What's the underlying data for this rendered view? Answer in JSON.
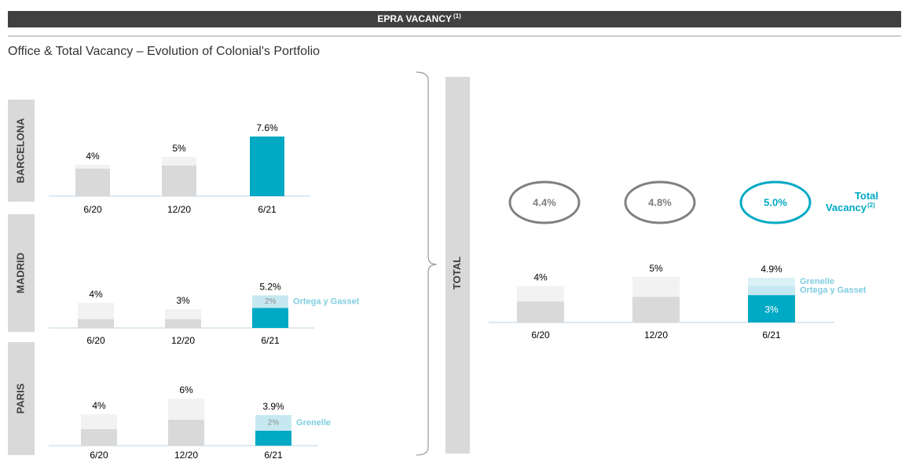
{
  "header": {
    "title": "EPRA VACANCY",
    "note": "(1)"
  },
  "subtitle": "Office & Total Vacancy – Evolution of Colonial's Portfolio",
  "chart_data": [
    {
      "type": "bar",
      "title": "BARCELONA",
      "categories": [
        "6/20",
        "12/20",
        "6/21"
      ],
      "values": [
        4,
        5,
        7.6
      ],
      "value_labels": [
        "4%",
        "5%",
        "7.6%"
      ],
      "base_values": [
        3.5,
        3.9,
        7.6
      ],
      "base_colors": [
        "#d9d9d9",
        "#d9d9d9",
        "#00a9c4"
      ],
      "top_color": "#f2f2f2",
      "ylim": [
        0,
        8
      ],
      "segments": []
    },
    {
      "type": "bar",
      "title": "MADRID",
      "categories": [
        "6/20",
        "12/20",
        "6/21"
      ],
      "values": [
        4,
        3,
        5.2
      ],
      "value_labels": [
        "4%",
        "3%",
        "5.2%"
      ],
      "base_values": [
        1.4,
        1.4,
        3.2
      ],
      "base_colors": [
        "#d9d9d9",
        "#d9d9d9",
        "#00a9c4"
      ],
      "top_color": "#f2f2f2",
      "ylim": [
        0,
        8
      ],
      "segments": [
        {
          "name": "Ortega y Gasset",
          "value": 2,
          "label": "2%",
          "color": "#c6e9f1"
        }
      ]
    },
    {
      "type": "bar",
      "title": "PARIS",
      "categories": [
        "6/20",
        "12/20",
        "6/21"
      ],
      "values": [
        4,
        6,
        3.9
      ],
      "value_labels": [
        "4%",
        "6%",
        "3.9%"
      ],
      "base_values": [
        2.1,
        3.3,
        1.9
      ],
      "base_colors": [
        "#d9d9d9",
        "#d9d9d9",
        "#00a9c4"
      ],
      "top_color": "#f2f2f2",
      "ylim": [
        0,
        8
      ],
      "segments": [
        {
          "name": "Grenelle",
          "value": 2,
          "label": "2%",
          "color": "#c6e9f1"
        }
      ]
    },
    {
      "type": "bar",
      "title": "TOTAL",
      "categories": [
        "6/20",
        "12/20",
        "6/21"
      ],
      "values": [
        4,
        5,
        4.9
      ],
      "value_labels": [
        "4%",
        "5%",
        "4.9%"
      ],
      "base_values": [
        2.3,
        2.8,
        3
      ],
      "base_value_labels": [
        null,
        null,
        "3%"
      ],
      "base_colors": [
        "#d9d9d9",
        "#d9d9d9",
        "#00a9c4"
      ],
      "top_color": "#f2f2f2",
      "ylim": [
        0,
        8
      ],
      "segments": [
        {
          "name": "Ortega y Gasset",
          "value": 1.0,
          "color": "#c6e9f1"
        },
        {
          "name": "Grenelle",
          "value": 0.9,
          "color": "#daf1f6"
        }
      ],
      "total_vacancy": {
        "label": "Total Vacancy",
        "note": "(2)",
        "values": [
          4.4,
          4.8,
          5.0
        ],
        "value_labels": [
          "4.4%",
          "4.8%",
          "5.0%"
        ],
        "colors": [
          "#7f7f7f",
          "#7f7f7f",
          "#00a9c4"
        ]
      }
    }
  ]
}
